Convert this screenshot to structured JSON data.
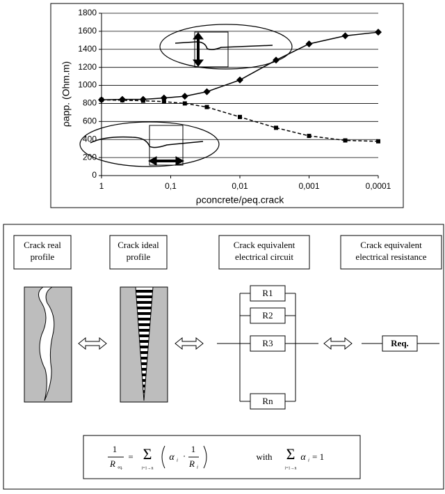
{
  "chart_data": {
    "type": "line",
    "x_label": "ρconcrete/ρeq.crack",
    "y_label": "ρapp. (Ohm.m)",
    "x": [
      1,
      0.5,
      0.25,
      0.125,
      0.0625,
      0.03,
      0.01,
      0.003,
      0.001,
      0.0003,
      0.0001
    ],
    "series": [
      {
        "color": "#000000",
        "dashed": false,
        "marker": "diamond",
        "values": [
          840,
          845,
          845,
          860,
          880,
          930,
          1060,
          1280,
          1460,
          1550,
          1590
        ]
      },
      {
        "color": "#000000",
        "dashed": true,
        "marker": "square",
        "values": [
          840,
          835,
          830,
          820,
          800,
          760,
          650,
          530,
          440,
          390,
          380
        ]
      }
    ],
    "x_scale": "log",
    "xlim": [
      1,
      0.0001
    ],
    "xticks": [
      1,
      {
        "value": 0.1,
        "label": "0,1"
      },
      {
        "value": 0.01,
        "label": "0,01"
      },
      {
        "value": 0.001,
        "label": "0,001"
      },
      {
        "value": 0.0001,
        "label": "0,0001"
      }
    ],
    "ylim": [
      0,
      1800
    ],
    "yticks": [
      0,
      200,
      400,
      600,
      800,
      1000,
      1200,
      1400,
      1600,
      1800
    ],
    "grid": true
  },
  "diagram": {
    "columns": [
      [
        "Crack real",
        "profile"
      ],
      [
        "Crack ideal",
        "profile"
      ],
      [
        "Crack equivalent",
        "electrical circuit"
      ],
      [
        "Crack equivalent",
        "electrical resistance"
      ]
    ],
    "resistors": [
      "R1",
      "R2",
      "R3",
      "Rn"
    ],
    "equivalent": "Req.",
    "formula": {
      "one": "1",
      "r": "R",
      "eq": "eq.",
      "equals": "=",
      "sum": "Σ",
      "range": "i=1→n",
      "alpha": "α",
      "i": "i",
      "dot": "·",
      "with": "with",
      "result": "= 1"
    }
  }
}
